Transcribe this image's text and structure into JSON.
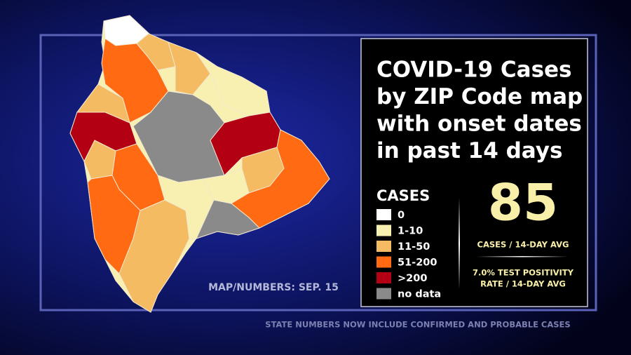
{
  "title_lines": [
    "COVID-19 Cases",
    "by ZIP Code map",
    "with onset dates",
    "in past 14 days"
  ],
  "legend": {
    "title": "CASES",
    "items": [
      {
        "label": "0",
        "color": "#ffffff"
      },
      {
        "label": "1-10",
        "color": "#f8f0b0"
      },
      {
        "label": "11-50",
        "color": "#f5bb62"
      },
      {
        "label": "51-200",
        "color": "#ff6a12"
      },
      {
        "label": ">200",
        "color": "#b30012"
      },
      {
        "label": "no data",
        "color": "#8a8a8a"
      }
    ]
  },
  "stat": {
    "value": "85",
    "label": "CASES / 14-DAY AVG"
  },
  "positivity_lines": [
    "7.0% TEST POSITIVITY",
    "RATE / 14-DAY AVG"
  ],
  "map_note": "MAP/NUMBERS: SEP. 15",
  "footer": "STATE NUMBERS NOW INCLUDE CONFIRMED AND PROBABLE CASES"
}
